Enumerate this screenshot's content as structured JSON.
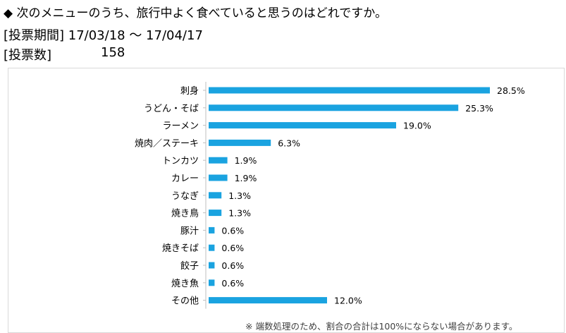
{
  "header": {
    "question": "◆  次のメニューのうち、旅行中よく食べていると思うのはどれですか。",
    "period": "[投票期間] 17/03/18 ～ 17/04/17",
    "votes_label": "[投票数]",
    "votes_value": "158"
  },
  "chart_data": {
    "type": "bar",
    "orientation": "horizontal",
    "categories": [
      "刺身",
      "うどん・そば",
      "ラーメン",
      "焼肉／ステーキ",
      "トンカツ",
      "カレー",
      "うなぎ",
      "焼き鳥",
      "豚汁",
      "焼きそば",
      "餃子",
      "焼き魚",
      "その他"
    ],
    "values": [
      28.5,
      25.3,
      19.0,
      6.3,
      1.9,
      1.9,
      1.3,
      1.3,
      0.6,
      0.6,
      0.6,
      0.6,
      12.0
    ],
    "value_labels": [
      "28.5%",
      "25.3%",
      "19.0%",
      "6.3%",
      "1.9%",
      "1.9%",
      "1.3%",
      "1.3%",
      "0.6%",
      "0.6%",
      "0.6%",
      "0.6%",
      "12.0%"
    ],
    "bar_color": "#1aa3e0",
    "axis_color": "#bfbfbf",
    "xlim": [
      0,
      28.5
    ],
    "grid": false,
    "legend": "none"
  },
  "footnote": "※  端数処理のため、割合の合計は100%にならない場合があります。"
}
